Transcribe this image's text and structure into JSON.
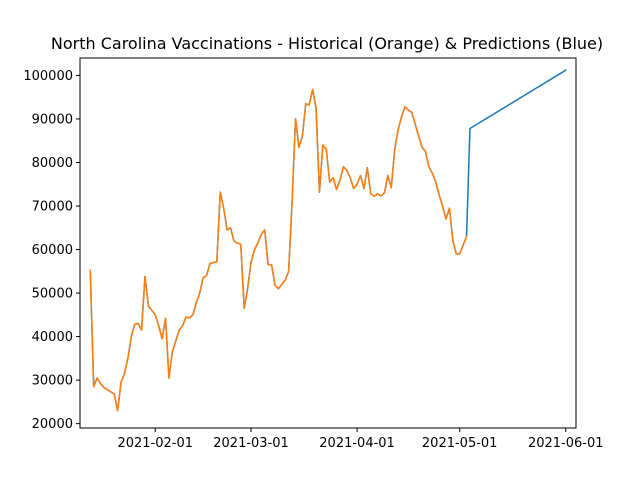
{
  "chart_data": {
    "type": "line",
    "title": "North Carolina Vaccinations - Historical (Orange) & Predictions (Blue)",
    "xlabel": "",
    "ylabel": "",
    "x_range": [
      "2021-01-10",
      "2021-06-04"
    ],
    "ylim": [
      19000,
      104000
    ],
    "grid": false,
    "x_ticks": [
      {
        "date": "2021-02-01",
        "label": "2021-02-01"
      },
      {
        "date": "2021-03-01",
        "label": "2021-03-01"
      },
      {
        "date": "2021-04-01",
        "label": "2021-04-01"
      },
      {
        "date": "2021-05-01",
        "label": "2021-05-01"
      },
      {
        "date": "2021-06-01",
        "label": "2021-06-01"
      }
    ],
    "y_ticks": [
      20000,
      30000,
      40000,
      50000,
      60000,
      70000,
      80000,
      90000,
      100000
    ],
    "y_tick_labels": [
      "20000",
      "30000",
      "40000",
      "50000",
      "60000",
      "70000",
      "80000",
      "90000",
      "100000"
    ],
    "series": [
      {
        "name": "Predictions",
        "color": "#1f77b4",
        "points": [
          [
            "2021-01-13",
            55200
          ],
          [
            "2021-01-14",
            28500
          ],
          [
            "2021-01-15",
            30500
          ],
          [
            "2021-01-16",
            29200
          ],
          [
            "2021-01-17",
            28300
          ],
          [
            "2021-01-18",
            27800
          ],
          [
            "2021-01-19",
            27300
          ],
          [
            "2021-01-20",
            26800
          ],
          [
            "2021-01-21",
            23000
          ],
          [
            "2021-01-22",
            29500
          ],
          [
            "2021-01-23",
            31500
          ],
          [
            "2021-01-24",
            35000
          ],
          [
            "2021-01-25",
            40000
          ],
          [
            "2021-01-26",
            42800
          ],
          [
            "2021-01-27",
            43000
          ],
          [
            "2021-01-28",
            41500
          ],
          [
            "2021-01-29",
            53800
          ],
          [
            "2021-01-30",
            47000
          ],
          [
            "2021-01-31",
            46000
          ],
          [
            "2021-02-01",
            45000
          ],
          [
            "2021-02-02",
            42500
          ],
          [
            "2021-02-03",
            39500
          ],
          [
            "2021-02-04",
            44200
          ],
          [
            "2021-02-05",
            30500
          ],
          [
            "2021-02-06",
            36500
          ],
          [
            "2021-02-07",
            39000
          ],
          [
            "2021-02-08",
            41500
          ],
          [
            "2021-02-09",
            42500
          ],
          [
            "2021-02-10",
            44500
          ],
          [
            "2021-02-11",
            44300
          ],
          [
            "2021-02-12",
            45000
          ],
          [
            "2021-02-13",
            47800
          ],
          [
            "2021-02-14",
            50000
          ],
          [
            "2021-02-15",
            53500
          ],
          [
            "2021-02-16",
            54000
          ],
          [
            "2021-02-17",
            56800
          ],
          [
            "2021-02-18",
            57000
          ],
          [
            "2021-02-19",
            57200
          ],
          [
            "2021-02-20",
            73200
          ],
          [
            "2021-02-21",
            69500
          ],
          [
            "2021-02-22",
            64500
          ],
          [
            "2021-02-23",
            65000
          ],
          [
            "2021-02-24",
            62000
          ],
          [
            "2021-02-25",
            61500
          ],
          [
            "2021-02-26",
            61200
          ],
          [
            "2021-02-27",
            46500
          ],
          [
            "2021-02-28",
            51000
          ],
          [
            "2021-03-01",
            57000
          ],
          [
            "2021-03-02",
            60000
          ],
          [
            "2021-03-03",
            61500
          ],
          [
            "2021-03-04",
            63500
          ],
          [
            "2021-03-05",
            64500
          ],
          [
            "2021-03-06",
            56500
          ],
          [
            "2021-03-07",
            56500
          ],
          [
            "2021-03-08",
            51800
          ],
          [
            "2021-03-09",
            51000
          ],
          [
            "2021-03-10",
            52000
          ],
          [
            "2021-03-11",
            53000
          ],
          [
            "2021-03-12",
            55000
          ],
          [
            "2021-03-13",
            71000
          ],
          [
            "2021-03-14",
            90000
          ],
          [
            "2021-03-15",
            83500
          ],
          [
            "2021-03-16",
            86000
          ],
          [
            "2021-03-17",
            93500
          ],
          [
            "2021-03-18",
            93200
          ],
          [
            "2021-03-19",
            96800
          ],
          [
            "2021-03-20",
            92500
          ],
          [
            "2021-03-21",
            73200
          ],
          [
            "2021-03-22",
            84000
          ],
          [
            "2021-03-23",
            83000
          ],
          [
            "2021-03-24",
            75500
          ],
          [
            "2021-03-25",
            76500
          ],
          [
            "2021-03-26",
            73800
          ],
          [
            "2021-03-27",
            76000
          ],
          [
            "2021-03-28",
            79000
          ],
          [
            "2021-03-29",
            78200
          ],
          [
            "2021-03-30",
            76500
          ],
          [
            "2021-03-31",
            74000
          ],
          [
            "2021-04-01",
            75000
          ],
          [
            "2021-04-02",
            77000
          ],
          [
            "2021-04-03",
            74000
          ],
          [
            "2021-04-04",
            78800
          ],
          [
            "2021-04-05",
            72800
          ],
          [
            "2021-04-06",
            72200
          ],
          [
            "2021-04-07",
            72800
          ],
          [
            "2021-04-08",
            72300
          ],
          [
            "2021-04-09",
            73000
          ],
          [
            "2021-04-10",
            77000
          ],
          [
            "2021-04-11",
            74200
          ],
          [
            "2021-04-12",
            83000
          ],
          [
            "2021-04-13",
            87500
          ],
          [
            "2021-04-14",
            90500
          ],
          [
            "2021-04-15",
            92800
          ],
          [
            "2021-04-16",
            92000
          ],
          [
            "2021-04-17",
            91500
          ],
          [
            "2021-04-18",
            88800
          ],
          [
            "2021-04-19",
            86000
          ],
          [
            "2021-04-20",
            83500
          ],
          [
            "2021-04-21",
            82500
          ],
          [
            "2021-04-22",
            79000
          ],
          [
            "2021-04-23",
            77500
          ],
          [
            "2021-04-24",
            75500
          ],
          [
            "2021-04-25",
            72500
          ],
          [
            "2021-04-26",
            70000
          ],
          [
            "2021-04-27",
            67000
          ],
          [
            "2021-04-28",
            69500
          ],
          [
            "2021-04-29",
            62000
          ],
          [
            "2021-04-30",
            59000
          ],
          [
            "2021-05-01",
            59000
          ],
          [
            "2021-05-02",
            61000
          ],
          [
            "2021-05-03",
            63000
          ],
          [
            "2021-05-04",
            87800
          ],
          [
            "2021-06-01",
            101200
          ]
        ]
      },
      {
        "name": "Historical",
        "color": "#ff7f0e",
        "points": [
          [
            "2021-01-13",
            55200
          ],
          [
            "2021-01-14",
            28500
          ],
          [
            "2021-01-15",
            30500
          ],
          [
            "2021-01-16",
            29200
          ],
          [
            "2021-01-17",
            28300
          ],
          [
            "2021-01-18",
            27800
          ],
          [
            "2021-01-19",
            27300
          ],
          [
            "2021-01-20",
            26800
          ],
          [
            "2021-01-21",
            23000
          ],
          [
            "2021-01-22",
            29500
          ],
          [
            "2021-01-23",
            31500
          ],
          [
            "2021-01-24",
            35000
          ],
          [
            "2021-01-25",
            40000
          ],
          [
            "2021-01-26",
            42800
          ],
          [
            "2021-01-27",
            43000
          ],
          [
            "2021-01-28",
            41500
          ],
          [
            "2021-01-29",
            53800
          ],
          [
            "2021-01-30",
            47000
          ],
          [
            "2021-01-31",
            46000
          ],
          [
            "2021-02-01",
            45000
          ],
          [
            "2021-02-02",
            42500
          ],
          [
            "2021-02-03",
            39500
          ],
          [
            "2021-02-04",
            44200
          ],
          [
            "2021-02-05",
            30500
          ],
          [
            "2021-02-06",
            36500
          ],
          [
            "2021-02-07",
            39000
          ],
          [
            "2021-02-08",
            41500
          ],
          [
            "2021-02-09",
            42500
          ],
          [
            "2021-02-10",
            44500
          ],
          [
            "2021-02-11",
            44300
          ],
          [
            "2021-02-12",
            45000
          ],
          [
            "2021-02-13",
            47800
          ],
          [
            "2021-02-14",
            50000
          ],
          [
            "2021-02-15",
            53500
          ],
          [
            "2021-02-16",
            54000
          ],
          [
            "2021-02-17",
            56800
          ],
          [
            "2021-02-18",
            57000
          ],
          [
            "2021-02-19",
            57200
          ],
          [
            "2021-02-20",
            73200
          ],
          [
            "2021-02-21",
            69500
          ],
          [
            "2021-02-22",
            64500
          ],
          [
            "2021-02-23",
            65000
          ],
          [
            "2021-02-24",
            62000
          ],
          [
            "2021-02-25",
            61500
          ],
          [
            "2021-02-26",
            61200
          ],
          [
            "2021-02-27",
            46500
          ],
          [
            "2021-02-28",
            51000
          ],
          [
            "2021-03-01",
            57000
          ],
          [
            "2021-03-02",
            60000
          ],
          [
            "2021-03-03",
            61500
          ],
          [
            "2021-03-04",
            63500
          ],
          [
            "2021-03-05",
            64500
          ],
          [
            "2021-03-06",
            56500
          ],
          [
            "2021-03-07",
            56500
          ],
          [
            "2021-03-08",
            51800
          ],
          [
            "2021-03-09",
            51000
          ],
          [
            "2021-03-10",
            52000
          ],
          [
            "2021-03-11",
            53000
          ],
          [
            "2021-03-12",
            55000
          ],
          [
            "2021-03-13",
            71000
          ],
          [
            "2021-03-14",
            90000
          ],
          [
            "2021-03-15",
            83500
          ],
          [
            "2021-03-16",
            86000
          ],
          [
            "2021-03-17",
            93500
          ],
          [
            "2021-03-18",
            93200
          ],
          [
            "2021-03-19",
            96800
          ],
          [
            "2021-03-20",
            92500
          ],
          [
            "2021-03-21",
            73200
          ],
          [
            "2021-03-22",
            84000
          ],
          [
            "2021-03-23",
            83000
          ],
          [
            "2021-03-24",
            75500
          ],
          [
            "2021-03-25",
            76500
          ],
          [
            "2021-03-26",
            73800
          ],
          [
            "2021-03-27",
            76000
          ],
          [
            "2021-03-28",
            79000
          ],
          [
            "2021-03-29",
            78200
          ],
          [
            "2021-03-30",
            76500
          ],
          [
            "2021-03-31",
            74000
          ],
          [
            "2021-04-01",
            75000
          ],
          [
            "2021-04-02",
            77000
          ],
          [
            "2021-04-03",
            74000
          ],
          [
            "2021-04-04",
            78800
          ],
          [
            "2021-04-05",
            72800
          ],
          [
            "2021-04-06",
            72200
          ],
          [
            "2021-04-07",
            72800
          ],
          [
            "2021-04-08",
            72300
          ],
          [
            "2021-04-09",
            73000
          ],
          [
            "2021-04-10",
            77000
          ],
          [
            "2021-04-11",
            74200
          ],
          [
            "2021-04-12",
            83000
          ],
          [
            "2021-04-13",
            87500
          ],
          [
            "2021-04-14",
            90500
          ],
          [
            "2021-04-15",
            92800
          ],
          [
            "2021-04-16",
            92000
          ],
          [
            "2021-04-17",
            91500
          ],
          [
            "2021-04-18",
            88800
          ],
          [
            "2021-04-19",
            86000
          ],
          [
            "2021-04-20",
            83500
          ],
          [
            "2021-04-21",
            82500
          ],
          [
            "2021-04-22",
            79000
          ],
          [
            "2021-04-23",
            77500
          ],
          [
            "2021-04-24",
            75500
          ],
          [
            "2021-04-25",
            72500
          ],
          [
            "2021-04-26",
            70000
          ],
          [
            "2021-04-27",
            67000
          ],
          [
            "2021-04-28",
            69500
          ],
          [
            "2021-04-29",
            62000
          ],
          [
            "2021-04-30",
            59000
          ],
          [
            "2021-05-01",
            59000
          ],
          [
            "2021-05-02",
            61000
          ],
          [
            "2021-05-03",
            63000
          ]
        ]
      }
    ]
  }
}
